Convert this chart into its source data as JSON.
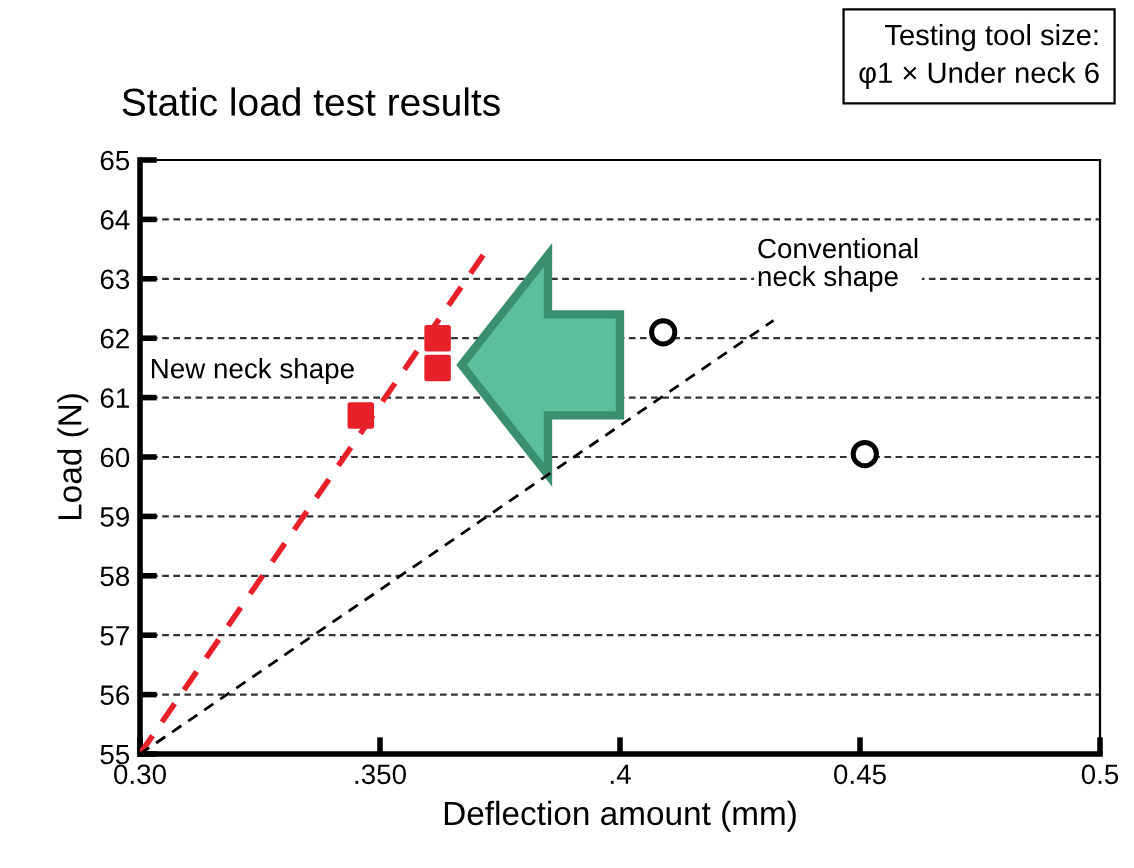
{
  "chart_data": {
    "type": "scatter",
    "title": "Static load test results",
    "xlabel": "Deflection amount (mm)",
    "ylabel": "Load (N)",
    "annotations": [
      "Testing tool size:\nφ1 × Under neck 6"
    ],
    "series": [
      {
        "name": "New neck shape",
        "marker": "square",
        "color": "#e8202a",
        "x": [
          0.346,
          0.362,
          0.362
        ],
        "values": [
          60.7,
          62.0,
          61.5
        ]
      },
      {
        "marker": "circle",
        "color": "#000000",
        "x": [
          0.409,
          0.451
        ],
        "values": [
          62.1,
          60.05
        ]
      },
      {
        "type": "line",
        "line_style": "dashed",
        "color": "#e8202a",
        "x": [
          0.3,
          0.3715
        ],
        "values": [
          55,
          63.4
        ]
      },
      {
        "name": "Conventional\nneck shape",
        "type": "line",
        "line_style": "dashed",
        "color": "#000000",
        "x": [
          0.3,
          0.432
        ],
        "values": [
          55,
          62.3
        ]
      }
    ],
    "xlim": [
      0.3,
      0.5
    ],
    "xticks": [
      {
        "value": 0.3,
        "label": "0.30"
      },
      {
        "value": 0.35,
        "label": ".350"
      },
      {
        "value": 0.4,
        "label": ".4"
      },
      {
        "value": 0.45,
        "label": "0.45"
      },
      {
        "value": 0.5,
        "label": "0.5"
      }
    ],
    "ylim": [
      55,
      65
    ],
    "yticks": [
      55,
      56,
      57,
      58,
      59,
      60,
      61,
      62,
      63,
      64,
      65
    ],
    "grid": "y",
    "legend": false
  }
}
